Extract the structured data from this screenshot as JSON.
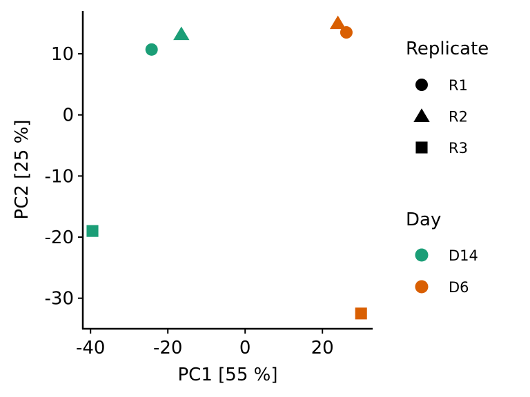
{
  "chart_data": {
    "type": "scatter",
    "xlabel": "PC1 [55 %]",
    "ylabel": "PC2 [25 %]",
    "xlim": [
      -42,
      33
    ],
    "ylim": [
      -35,
      17
    ],
    "x_ticks": [
      -40,
      -20,
      0,
      20
    ],
    "y_ticks": [
      -30,
      -20,
      -10,
      0,
      10
    ],
    "x_tick_labels": [
      "-40",
      "-20",
      "0",
      "20"
    ],
    "y_tick_labels": [
      "-30",
      "-20",
      "-10",
      "0",
      "10"
    ],
    "grid": false,
    "legend_position": "right",
    "points": [
      {
        "day": "D14",
        "replicate": "R1",
        "x": -24.2,
        "y": 10.7
      },
      {
        "day": "D14",
        "replicate": "R2",
        "x": -16.5,
        "y": 13.2
      },
      {
        "day": "D14",
        "replicate": "R3",
        "x": -39.5,
        "y": -19.0
      },
      {
        "day": "D6",
        "replicate": "R1",
        "x": 26.2,
        "y": 13.5
      },
      {
        "day": "D6",
        "replicate": "R2",
        "x": 24.0,
        "y": 15.0
      },
      {
        "day": "D6",
        "replicate": "R3",
        "x": 30.0,
        "y": -32.5
      }
    ],
    "legends": {
      "shape": {
        "title": "Replicate",
        "items": [
          {
            "label": "R1",
            "shape": "circle"
          },
          {
            "label": "R2",
            "shape": "triangle"
          },
          {
            "label": "R3",
            "shape": "square"
          }
        ]
      },
      "color": {
        "title": "Day",
        "items": [
          {
            "label": "D14",
            "color": "#1b9e77"
          },
          {
            "label": "D6",
            "color": "#d95f02"
          }
        ]
      }
    }
  }
}
